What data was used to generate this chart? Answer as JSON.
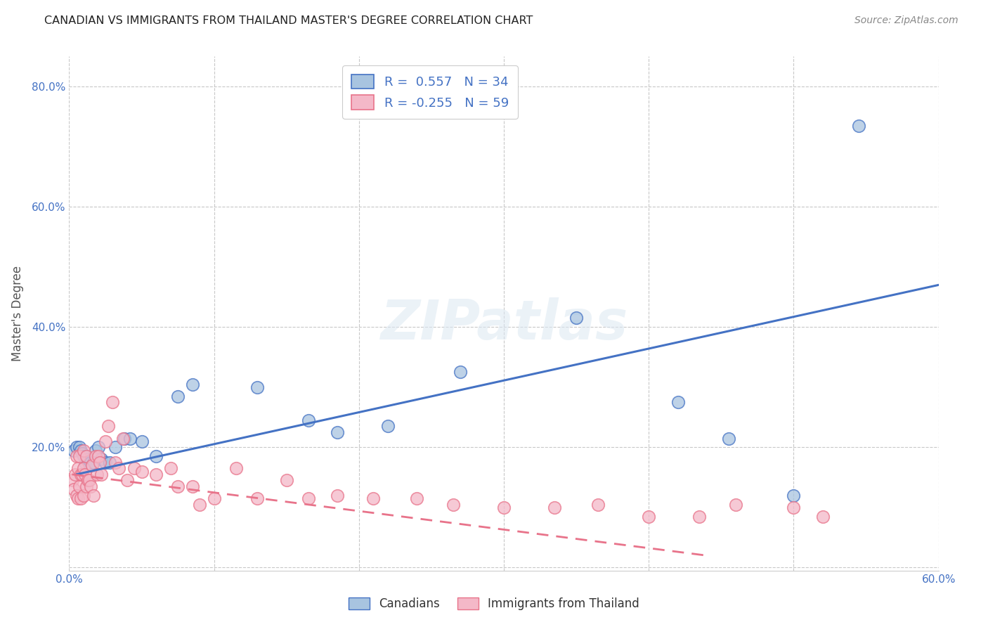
{
  "title": "CANADIAN VS IMMIGRANTS FROM THAILAND MASTER'S DEGREE CORRELATION CHART",
  "source": "Source: ZipAtlas.com",
  "ylabel": "Master's Degree",
  "xlim": [
    0.0,
    0.6
  ],
  "ylim": [
    -0.005,
    0.85
  ],
  "xticks": [
    0.0,
    0.1,
    0.2,
    0.3,
    0.4,
    0.5,
    0.6
  ],
  "xticklabels": [
    "0.0%",
    "",
    "",
    "",
    "",
    "",
    "60.0%"
  ],
  "yticks": [
    0.0,
    0.2,
    0.4,
    0.6,
    0.8
  ],
  "yticklabels": [
    "",
    "20.0%",
    "40.0%",
    "60.0%",
    "80.0%"
  ],
  "watermark": "ZIPatlas",
  "canadian_color": "#a8c4e0",
  "thai_color": "#f4b8c8",
  "canadian_line_color": "#4472c4",
  "thai_line_color": "#e8738a",
  "R_canadian": 0.557,
  "N_canadian": 34,
  "R_thai": -0.255,
  "N_thai": 59,
  "ca_line_x0": 0.005,
  "ca_line_x1": 0.6,
  "ca_line_y0": 0.155,
  "ca_line_y1": 0.47,
  "th_line_x0": 0.002,
  "th_line_x1": 0.44,
  "th_line_y0": 0.155,
  "th_line_y1": 0.02,
  "canadians_x": [
    0.003,
    0.005,
    0.007,
    0.008,
    0.009,
    0.01,
    0.011,
    0.012,
    0.013,
    0.015,
    0.016,
    0.017,
    0.018,
    0.02,
    0.022,
    0.025,
    0.028,
    0.032,
    0.038,
    0.042,
    0.05,
    0.06,
    0.075,
    0.085,
    0.13,
    0.165,
    0.185,
    0.22,
    0.27,
    0.35,
    0.42,
    0.455,
    0.5,
    0.545
  ],
  "canadians_y": [
    0.195,
    0.2,
    0.2,
    0.195,
    0.19,
    0.185,
    0.175,
    0.185,
    0.18,
    0.175,
    0.17,
    0.175,
    0.195,
    0.2,
    0.18,
    0.175,
    0.175,
    0.2,
    0.215,
    0.215,
    0.21,
    0.185,
    0.285,
    0.305,
    0.3,
    0.245,
    0.225,
    0.235,
    0.325,
    0.415,
    0.275,
    0.215,
    0.12,
    0.735
  ],
  "thai_x": [
    0.002,
    0.003,
    0.004,
    0.005,
    0.005,
    0.006,
    0.006,
    0.007,
    0.007,
    0.008,
    0.008,
    0.009,
    0.01,
    0.01,
    0.01,
    0.011,
    0.012,
    0.012,
    0.013,
    0.014,
    0.015,
    0.016,
    0.017,
    0.018,
    0.019,
    0.02,
    0.021,
    0.022,
    0.025,
    0.027,
    0.03,
    0.032,
    0.034,
    0.037,
    0.04,
    0.045,
    0.05,
    0.06,
    0.07,
    0.075,
    0.085,
    0.09,
    0.1,
    0.115,
    0.13,
    0.15,
    0.165,
    0.185,
    0.21,
    0.24,
    0.265,
    0.3,
    0.335,
    0.365,
    0.4,
    0.435,
    0.46,
    0.5,
    0.52
  ],
  "thai_y": [
    0.145,
    0.13,
    0.155,
    0.185,
    0.12,
    0.165,
    0.115,
    0.185,
    0.135,
    0.155,
    0.115,
    0.155,
    0.195,
    0.165,
    0.12,
    0.155,
    0.135,
    0.185,
    0.145,
    0.145,
    0.135,
    0.17,
    0.12,
    0.185,
    0.155,
    0.185,
    0.175,
    0.155,
    0.21,
    0.235,
    0.275,
    0.175,
    0.165,
    0.215,
    0.145,
    0.165,
    0.16,
    0.155,
    0.165,
    0.135,
    0.135,
    0.105,
    0.115,
    0.165,
    0.115,
    0.145,
    0.115,
    0.12,
    0.115,
    0.115,
    0.105,
    0.1,
    0.1,
    0.105,
    0.085,
    0.085,
    0.105,
    0.1,
    0.085
  ]
}
